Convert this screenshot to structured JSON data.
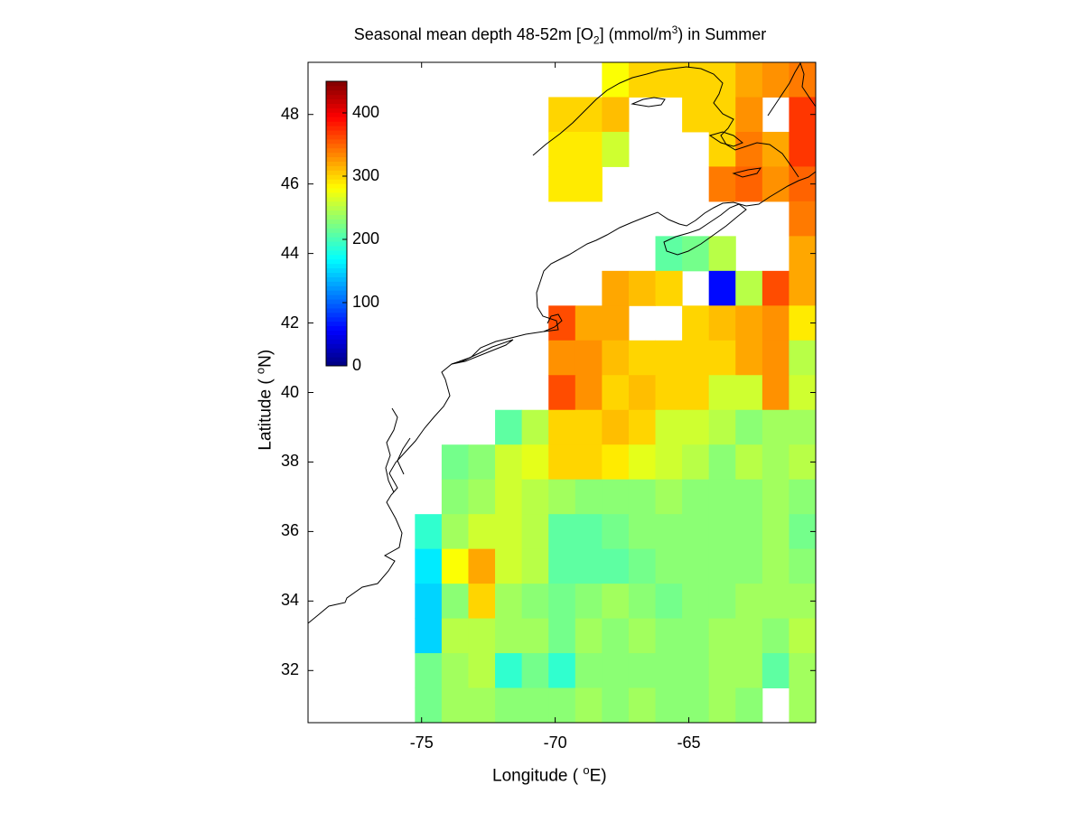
{
  "figure": {
    "title_main": "Seasonal mean depth 48-52m [O",
    "title_sub": "2",
    "title_unit": "] (mmol/m",
    "title_sup": "3",
    "title_end": ") in  Summer",
    "xlabel_main": "Longitude ( ",
    "xlabel_sup": "o",
    "xlabel_end": "E)",
    "ylabel_main": "Latitude ( ",
    "ylabel_sup": "o",
    "ylabel_end": "N)"
  },
  "chart_data": {
    "type": "heatmap",
    "x_range": [
      -79.25,
      -60.25
    ],
    "y_range": [
      30.5,
      49.5
    ],
    "x_ticks": [
      -75,
      -70,
      -65
    ],
    "x_tick_labels": [
      "-75",
      "-70",
      "-65"
    ],
    "y_ticks": [
      32,
      34,
      36,
      38,
      40,
      42,
      44,
      46,
      48
    ],
    "y_tick_labels": [
      "32",
      "34",
      "36",
      "38",
      "40",
      "42",
      "44",
      "46",
      "48"
    ],
    "colorbar": {
      "range": [
        0,
        450
      ],
      "ticks": [
        0,
        100,
        200,
        300,
        400
      ],
      "tick_labels": [
        "0",
        "100",
        "200",
        "300",
        "400"
      ],
      "colormap": "jet"
    },
    "grid": {
      "lon_start": -79.25,
      "lat_top": 49.5,
      "cell_deg": 1,
      "cols": 19,
      "rows": 19,
      "rows_north_to_south": [
        [
          null,
          null,
          null,
          null,
          null,
          null,
          null,
          null,
          null,
          null,
          null,
          280,
          300,
          300,
          300,
          300,
          320,
          330,
          340
        ],
        [
          null,
          null,
          null,
          null,
          null,
          null,
          null,
          null,
          null,
          300,
          300,
          310,
          null,
          null,
          300,
          300,
          330,
          null,
          370
        ],
        [
          null,
          null,
          null,
          null,
          null,
          null,
          null,
          null,
          null,
          290,
          290,
          260,
          null,
          null,
          null,
          300,
          340,
          320,
          370
        ],
        [
          null,
          null,
          null,
          null,
          null,
          null,
          null,
          null,
          null,
          290,
          290,
          null,
          null,
          null,
          null,
          340,
          350,
          330,
          350
        ],
        [
          null,
          null,
          null,
          null,
          null,
          null,
          null,
          null,
          null,
          null,
          null,
          null,
          null,
          null,
          null,
          null,
          null,
          null,
          340
        ],
        [
          null,
          null,
          null,
          null,
          null,
          null,
          null,
          null,
          null,
          null,
          null,
          null,
          null,
          210,
          220,
          250,
          null,
          null,
          320
        ],
        [
          null,
          null,
          null,
          null,
          null,
          null,
          null,
          null,
          null,
          null,
          null,
          320,
          310,
          300,
          null,
          60,
          250,
          360,
          320
        ],
        [
          null,
          null,
          null,
          null,
          null,
          null,
          null,
          null,
          null,
          360,
          320,
          320,
          null,
          null,
          300,
          310,
          320,
          330,
          290
        ],
        [
          null,
          null,
          null,
          null,
          null,
          null,
          null,
          null,
          null,
          330,
          330,
          310,
          300,
          300,
          300,
          300,
          320,
          330,
          250
        ],
        [
          null,
          null,
          null,
          null,
          null,
          null,
          null,
          null,
          null,
          360,
          330,
          300,
          310,
          300,
          300,
          260,
          260,
          330,
          260
        ],
        [
          null,
          null,
          null,
          null,
          null,
          null,
          null,
          210,
          250,
          300,
          300,
          310,
          300,
          260,
          260,
          250,
          230,
          240,
          240
        ],
        [
          null,
          null,
          null,
          null,
          null,
          220,
          230,
          260,
          270,
          300,
          300,
          290,
          270,
          260,
          250,
          230,
          250,
          240,
          250
        ],
        [
          null,
          null,
          null,
          null,
          null,
          230,
          240,
          260,
          250,
          240,
          230,
          230,
          230,
          240,
          230,
          230,
          230,
          240,
          230
        ],
        [
          null,
          null,
          null,
          null,
          190,
          240,
          260,
          260,
          250,
          210,
          210,
          220,
          230,
          230,
          230,
          230,
          230,
          240,
          220
        ],
        [
          null,
          null,
          null,
          null,
          160,
          280,
          320,
          260,
          250,
          210,
          210,
          210,
          220,
          230,
          230,
          230,
          230,
          240,
          230
        ],
        [
          null,
          null,
          null,
          null,
          150,
          230,
          300,
          240,
          230,
          220,
          230,
          240,
          230,
          220,
          230,
          230,
          240,
          240,
          240
        ],
        [
          null,
          null,
          null,
          null,
          150,
          250,
          250,
          240,
          240,
          220,
          240,
          230,
          240,
          230,
          230,
          240,
          240,
          230,
          250
        ],
        [
          null,
          null,
          null,
          null,
          220,
          240,
          250,
          190,
          220,
          190,
          230,
          230,
          230,
          230,
          230,
          240,
          240,
          210,
          240
        ],
        [
          null,
          null,
          null,
          null,
          220,
          240,
          240,
          230,
          230,
          230,
          240,
          230,
          240,
          230,
          230,
          240,
          230,
          null,
          240
        ]
      ]
    }
  }
}
